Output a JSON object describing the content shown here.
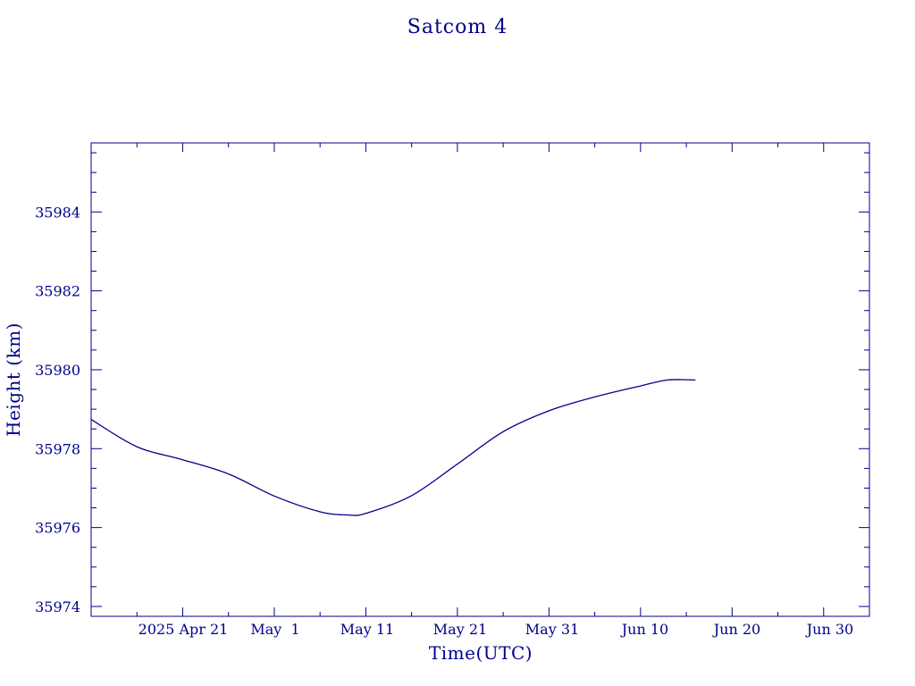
{
  "chart_data": {
    "type": "line",
    "title": "Satcom 4",
    "xlabel": "Time(UTC)",
    "ylabel": "Height (km)",
    "x_tick_labels": [
      "2025 Apr 21",
      "May  1",
      "May 11",
      "May 21",
      "May 31",
      "Jun 10",
      "Jun 20",
      "Jun 30"
    ],
    "y_tick_labels": [
      "35974",
      "35976",
      "35978",
      "35980",
      "35982",
      "35984"
    ],
    "xlim": [
      "2025-04-11",
      "2025-07-05"
    ],
    "ylim": [
      35973.75,
      35985.75
    ],
    "grid": false,
    "series": [
      {
        "color": "#00008b",
        "x": [
          "2025-04-11",
          "2025-04-16",
          "2025-04-21",
          "2025-04-26",
          "2025-05-01",
          "2025-05-06",
          "2025-05-09",
          "2025-05-11",
          "2025-05-16",
          "2025-05-21",
          "2025-05-26",
          "2025-05-31",
          "2025-06-05",
          "2025-06-10",
          "2025-06-13",
          "2025-06-16"
        ],
        "values": [
          35978.74,
          35978.05,
          35977.72,
          35977.36,
          35976.8,
          35976.4,
          35976.32,
          35976.36,
          35976.81,
          35977.61,
          35978.43,
          35978.96,
          35979.31,
          35979.59,
          35979.74,
          35979.74
        ]
      }
    ]
  }
}
